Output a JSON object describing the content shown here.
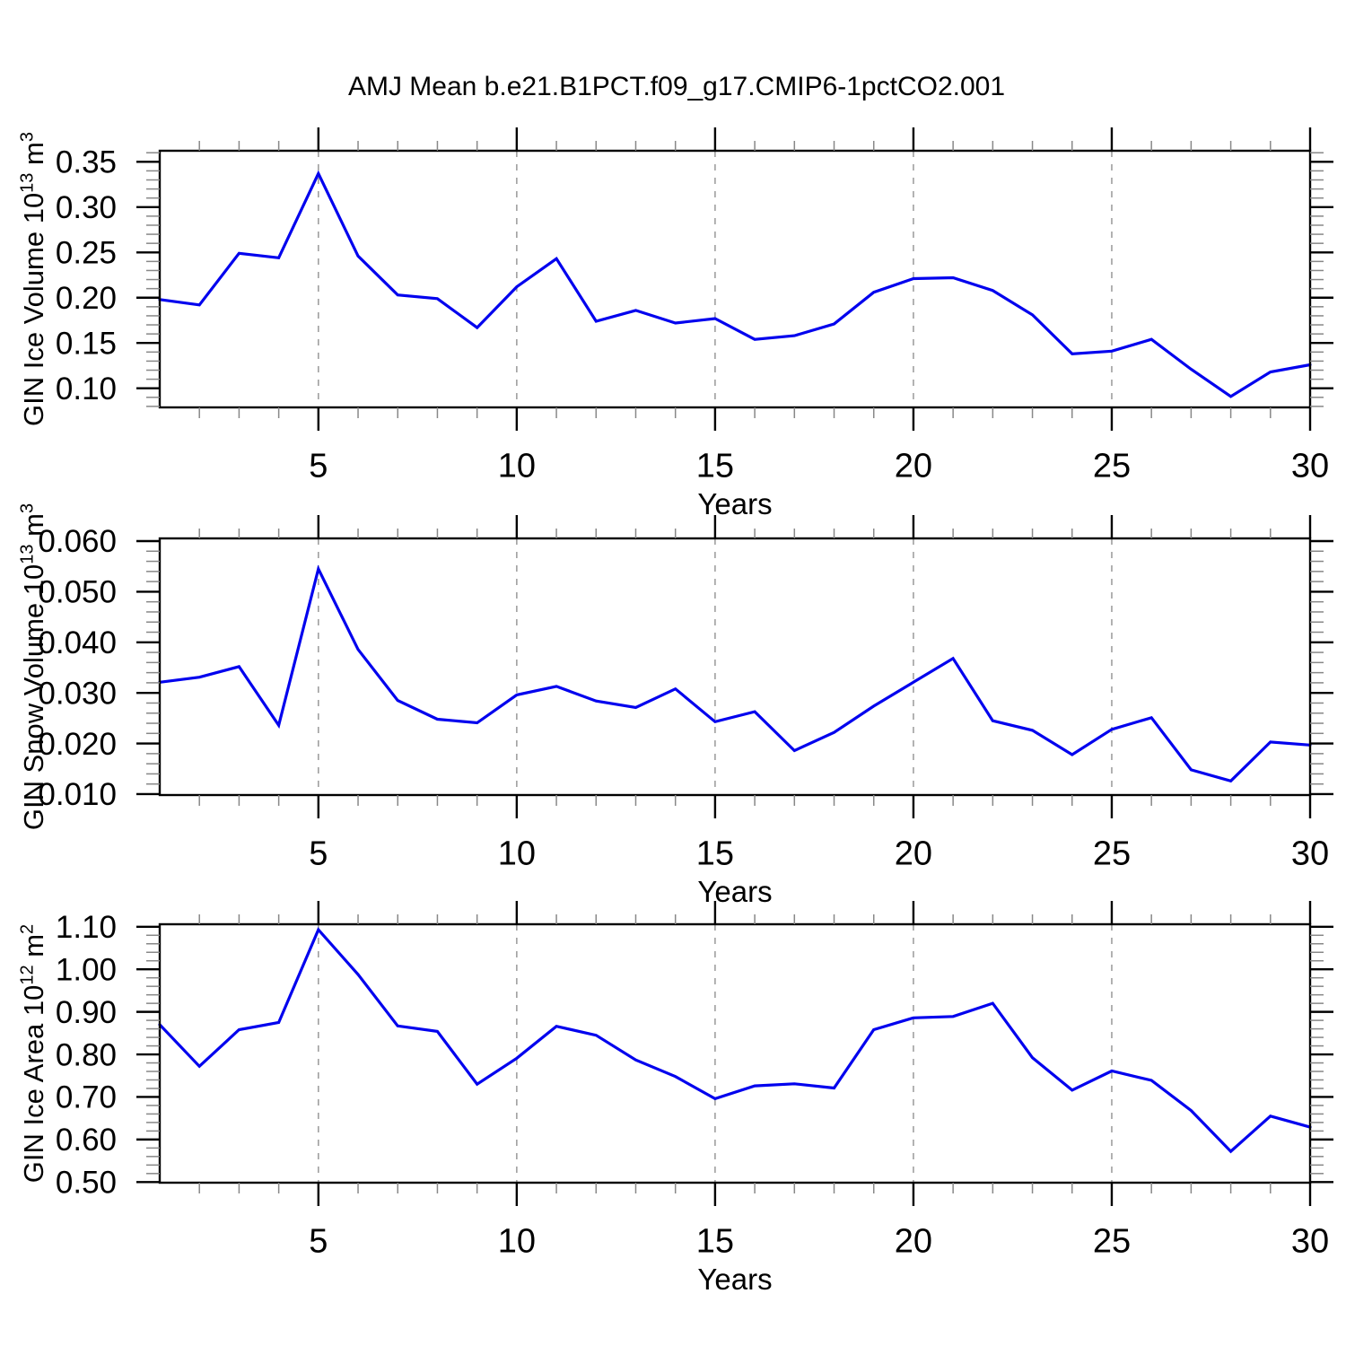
{
  "title": "AMJ Mean b.e21.B1PCT.f09_g17.CMIP6-1pctCO2.001",
  "colors": {
    "line": "#0101ee",
    "grid": "#999999",
    "axis": "#000000",
    "minor_tick": "#888888",
    "background": "#ffffff"
  },
  "chart_data": [
    {
      "name": "gin-ice-volume",
      "type": "line",
      "ylabel_parts": [
        {
          "t": "GIN Ice Volume 10"
        },
        {
          "t": "13",
          "sup": true
        },
        {
          "t": " m"
        },
        {
          "t": "3",
          "sup": true
        }
      ],
      "xlabel": "Years",
      "x": [
        1,
        2,
        3,
        4,
        5,
        6,
        7,
        8,
        9,
        10,
        11,
        12,
        13,
        14,
        15,
        16,
        17,
        18,
        19,
        20,
        21,
        22,
        23,
        24,
        25,
        26,
        27,
        28,
        29,
        30
      ],
      "values": [
        0.198,
        0.192,
        0.249,
        0.244,
        0.337,
        0.246,
        0.203,
        0.199,
        0.167,
        0.212,
        0.243,
        0.174,
        0.186,
        0.172,
        0.177,
        0.154,
        0.158,
        0.171,
        0.206,
        0.221,
        0.222,
        0.208,
        0.181,
        0.138,
        0.141,
        0.154,
        0.121,
        0.091,
        0.118,
        0.126
      ],
      "ylim": [
        0.0789,
        0.3622
      ],
      "yticks": [
        0.1,
        0.15,
        0.2,
        0.25,
        0.3,
        0.35
      ],
      "ytick_decimals": 2,
      "yminor_step": 0.01,
      "xlim": [
        1,
        30
      ],
      "xticks": [
        5,
        10,
        15,
        20,
        25,
        30
      ],
      "xminor_step": 1,
      "gridline_years": [
        5,
        10,
        15,
        20,
        25
      ],
      "grid": "vertical-dashed"
    },
    {
      "name": "gin-snow-volume",
      "type": "line",
      "ylabel_parts": [
        {
          "t": "GIN Snow Volume 10"
        },
        {
          "t": "13",
          "sup": true
        },
        {
          "t": " m"
        },
        {
          "t": "3",
          "sup": true
        }
      ],
      "xlabel": "Years",
      "x": [
        1,
        2,
        3,
        4,
        5,
        6,
        7,
        8,
        9,
        10,
        11,
        12,
        13,
        14,
        15,
        16,
        17,
        18,
        19,
        20,
        21,
        22,
        23,
        24,
        25,
        26,
        27,
        28,
        29,
        30
      ],
      "values": [
        0.0321,
        0.0331,
        0.0352,
        0.0236,
        0.0545,
        0.0386,
        0.0285,
        0.0248,
        0.0241,
        0.0296,
        0.0313,
        0.0284,
        0.0271,
        0.0308,
        0.0243,
        0.0263,
        0.0186,
        0.0222,
        0.0274,
        0.0321,
        0.0368,
        0.0245,
        0.0226,
        0.0178,
        0.0228,
        0.0251,
        0.0148,
        0.0126,
        0.0203,
        0.0197
      ],
      "ylim": [
        0.00982,
        0.06053
      ],
      "yticks": [
        0.01,
        0.02,
        0.03,
        0.04,
        0.05,
        0.06
      ],
      "ytick_decimals": 3,
      "yminor_step": 0.002,
      "xlim": [
        1,
        30
      ],
      "xticks": [
        5,
        10,
        15,
        20,
        25,
        30
      ],
      "xminor_step": 1,
      "gridline_years": [
        5,
        10,
        15,
        20,
        25
      ],
      "grid": "vertical-dashed"
    },
    {
      "name": "gin-ice-area",
      "type": "line",
      "ylabel_parts": [
        {
          "t": "GIN Ice Area 10"
        },
        {
          "t": "12",
          "sup": true
        },
        {
          "t": " m"
        },
        {
          "t": "2",
          "sup": true
        }
      ],
      "xlabel": "Years",
      "x": [
        1,
        2,
        3,
        4,
        5,
        6,
        7,
        8,
        9,
        10,
        11,
        12,
        13,
        14,
        15,
        16,
        17,
        18,
        19,
        20,
        21,
        22,
        23,
        24,
        25,
        26,
        27,
        28,
        29,
        30
      ],
      "values": [
        0.87,
        0.772,
        0.858,
        0.875,
        1.093,
        0.988,
        0.867,
        0.854,
        0.73,
        0.791,
        0.866,
        0.845,
        0.787,
        0.748,
        0.696,
        0.726,
        0.731,
        0.721,
        0.858,
        0.886,
        0.889,
        0.92,
        0.792,
        0.716,
        0.761,
        0.739,
        0.668,
        0.572,
        0.655,
        0.629
      ],
      "ylim": [
        0.4985,
        1.1059
      ],
      "yticks": [
        0.5,
        0.6,
        0.7,
        0.8,
        0.9,
        1.0,
        1.1
      ],
      "ytick_decimals": 2,
      "yminor_step": 0.02,
      "xlim": [
        1,
        30
      ],
      "xticks": [
        5,
        10,
        15,
        20,
        25,
        30
      ],
      "xminor_step": 1,
      "gridline_years": [
        5,
        10,
        15,
        20,
        25
      ],
      "grid": "vertical-dashed"
    }
  ]
}
